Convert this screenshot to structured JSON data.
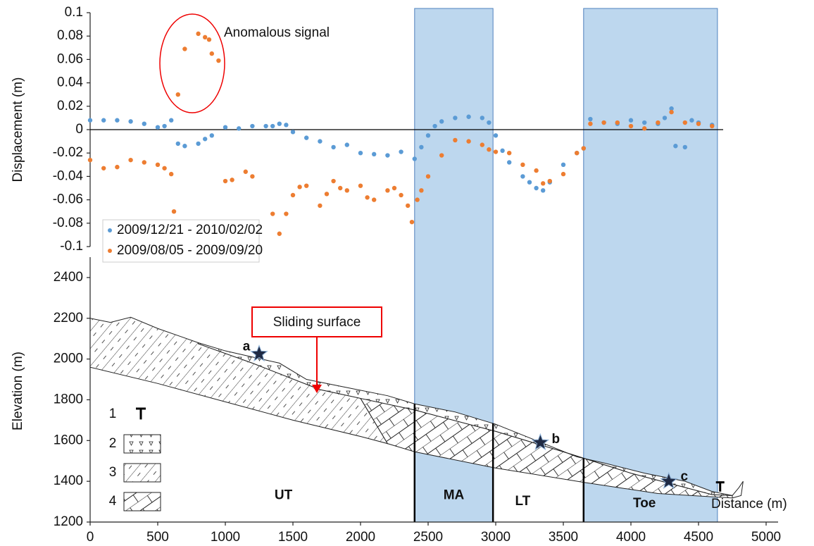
{
  "chart_data": [
    {
      "type": "scatter",
      "y_label": "Displacement (m)",
      "annotation": "Anomalous signal",
      "xlim": [
        0,
        5000
      ],
      "ylim": [
        -0.1,
        0.1
      ],
      "yticks": [
        0.1,
        0.08,
        0.06,
        0.04,
        0.02,
        0,
        -0.02,
        -0.04,
        -0.06,
        -0.08,
        -0.1
      ],
      "legend": "lower left",
      "series": [
        {
          "name": "2009/12/21 - 2010/02/02",
          "color": "#5b9bd5",
          "x": [
            0,
            100,
            200,
            300,
            400,
            500,
            550,
            600,
            650,
            700,
            800,
            850,
            900,
            1000,
            1100,
            1200,
            1300,
            1350,
            1400,
            1450,
            1500,
            1600,
            1700,
            1800,
            1900,
            2000,
            2100,
            2200,
            2300,
            2400,
            2450,
            2500,
            2550,
            2600,
            2700,
            2800,
            2900,
            2950,
            3000,
            3050,
            3100,
            3200,
            3250,
            3300,
            3350,
            3400,
            3500,
            3600,
            3650,
            3700,
            3800,
            3900,
            4000,
            4100,
            4200,
            4250,
            4300,
            4330,
            4400,
            4450,
            4500,
            4600
          ],
          "values": [
            0.008,
            0.008,
            0.008,
            0.007,
            0.005,
            0.002,
            0.003,
            0.008,
            -0.012,
            -0.014,
            -0.012,
            -0.008,
            -0.005,
            0.002,
            0.001,
            0.003,
            0.003,
            0.003,
            0.005,
            0.004,
            -0.002,
            -0.007,
            -0.01,
            -0.015,
            -0.013,
            -0.02,
            -0.021,
            -0.022,
            -0.019,
            -0.025,
            -0.015,
            -0.005,
            0.003,
            0.007,
            0.01,
            0.011,
            0.01,
            0.006,
            -0.005,
            -0.018,
            -0.028,
            -0.04,
            -0.045,
            -0.05,
            -0.052,
            -0.045,
            -0.03,
            -0.02,
            -0.016,
            0.009,
            0.006,
            0.005,
            0.008,
            0.006,
            0.005,
            0.01,
            0.018,
            -0.014,
            -0.015,
            0.008,
            0.006,
            0.004
          ]
        },
        {
          "name": "2009/08/05 - 2009/09/20",
          "color": "#ed7d31",
          "x": [
            0,
            100,
            200,
            300,
            400,
            500,
            550,
            600,
            620,
            650,
            700,
            800,
            850,
            880,
            900,
            950,
            1000,
            1050,
            1150,
            1200,
            1350,
            1400,
            1450,
            1500,
            1550,
            1600,
            1700,
            1750,
            1800,
            1850,
            1900,
            2000,
            2050,
            2100,
            2200,
            2250,
            2300,
            2350,
            2380,
            2420,
            2450,
            2500,
            2600,
            2700,
            2800,
            2900,
            2950,
            3000,
            3100,
            3200,
            3300,
            3350,
            3400,
            3500,
            3600,
            3650,
            3700,
            3800,
            3900,
            4000,
            4100,
            4200,
            4300,
            4400,
            4500,
            4600
          ],
          "values": [
            -0.026,
            -0.033,
            -0.032,
            -0.026,
            -0.028,
            -0.03,
            -0.033,
            -0.038,
            -0.07,
            0.03,
            0.069,
            0.082,
            0.079,
            0.077,
            0.065,
            0.059,
            -0.044,
            -0.043,
            -0.036,
            -0.04,
            -0.072,
            -0.089,
            -0.072,
            -0.056,
            -0.049,
            -0.048,
            -0.065,
            -0.055,
            -0.044,
            -0.05,
            -0.052,
            -0.048,
            -0.058,
            -0.06,
            -0.052,
            -0.05,
            -0.056,
            -0.065,
            -0.079,
            -0.06,
            -0.052,
            -0.04,
            -0.022,
            -0.009,
            -0.01,
            -0.013,
            -0.017,
            -0.019,
            -0.02,
            -0.03,
            -0.035,
            -0.046,
            -0.044,
            -0.038,
            -0.02,
            -0.016,
            0.005,
            0.006,
            0.006,
            0.003,
            0.001,
            0.006,
            0.015,
            0.006,
            0.005,
            0.003
          ]
        }
      ]
    },
    {
      "type": "section",
      "x_label": "Distance (m)",
      "y_label": "Elevation (m)",
      "annotation": "Sliding surface",
      "xlim": [
        0,
        5000
      ],
      "ylim": [
        1200,
        2500
      ],
      "xticks": [
        0,
        500,
        1000,
        1500,
        2000,
        2500,
        3000,
        3500,
        4000,
        4500,
        5000
      ],
      "yticks": [
        1200,
        1400,
        1600,
        1800,
        2000,
        2200,
        2400
      ],
      "bands": [
        [
          2400,
          2980
        ],
        [
          3650,
          4640
        ]
      ],
      "zones": [
        "UT",
        "MA",
        "LT",
        "Toe"
      ],
      "points": [
        "a",
        "b",
        "c"
      ],
      "legend_items": [
        "1",
        "2",
        "3",
        "4"
      ]
    }
  ]
}
